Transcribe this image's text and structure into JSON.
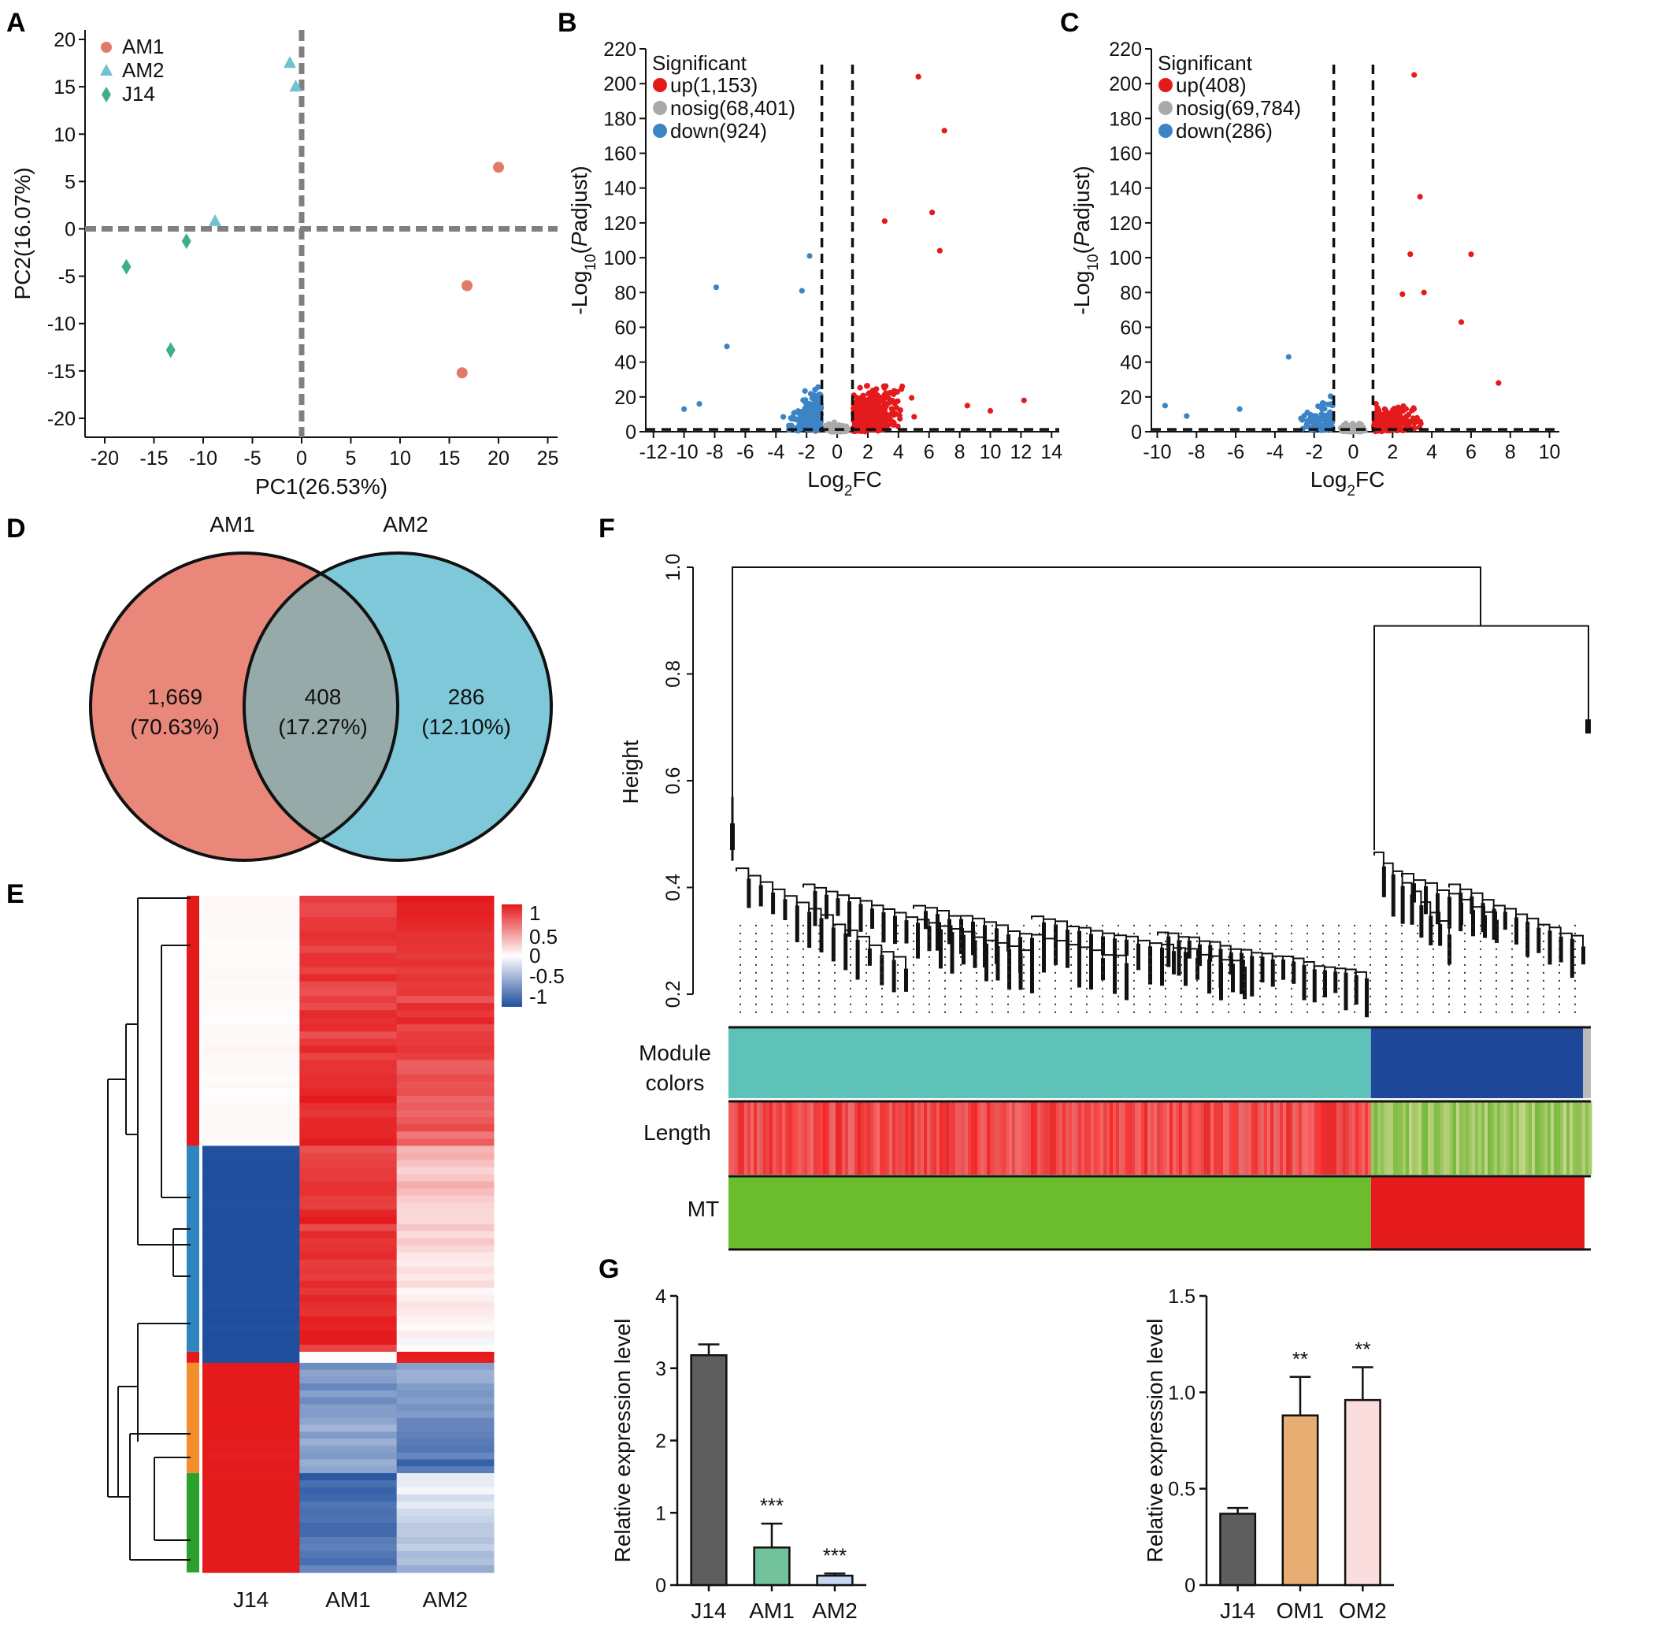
{
  "panels": [
    "A",
    "B",
    "C",
    "D",
    "E",
    "F",
    "G"
  ],
  "colors": {
    "am1": "#e07b69",
    "am2": "#6ec3d3",
    "j14": "#3fae8c",
    "up": "#e41a1c",
    "nosig": "#aaaaaa",
    "down": "#3c84c6",
    "venn_left": "#e9877a",
    "venn_right": "#7ec8d9",
    "venn_overlap": "#96aba9",
    "heat_high": "#e41a1c",
    "heat_low": "#1f4e9e",
    "turquoise": "#5ec2b9",
    "blue": "#1f4799",
    "green": "#6cbd2e",
    "red": "#e41a1c",
    "bar_j14": "#5e5e5e",
    "bar_am1": "#72c29b",
    "bar_am2": "#c6d8f4",
    "bar_om1": "#e8ad73",
    "bar_om2": "#fbdddd"
  },
  "chart_data": [
    {
      "panel": "A",
      "type": "scatter",
      "xlabel": "PC1(26.53%)",
      "ylabel": "PC2(16.07%)",
      "xlim": [
        -22,
        26
      ],
      "ylim": [
        -22,
        21
      ],
      "xticks": [
        -20,
        -15,
        -10,
        -5,
        0,
        5,
        10,
        15,
        20,
        25
      ],
      "yticks": [
        20,
        15,
        10,
        5,
        0,
        -5,
        -10,
        -15,
        -20
      ],
      "legend": [
        "AM1",
        "AM2",
        "J14"
      ],
      "series": [
        {
          "name": "AM1",
          "shape": "circle",
          "points": [
            [
              20,
              6.5
            ],
            [
              16.8,
              -6
            ],
            [
              16.3,
              -15.2
            ]
          ]
        },
        {
          "name": "AM2",
          "shape": "triangle",
          "points": [
            [
              -1.2,
              17.5
            ],
            [
              -0.6,
              15
            ],
            [
              -8.8,
              0.8
            ]
          ]
        },
        {
          "name": "J14",
          "shape": "diamond",
          "points": [
            [
              -11.7,
              -1.3
            ],
            [
              -17.8,
              -4
            ],
            [
              -13.3,
              -12.8
            ]
          ]
        }
      ]
    },
    {
      "panel": "B",
      "type": "scatter",
      "xlabel": "Log2FC",
      "ylabel": "-Log10(Padjust)",
      "xlim": [
        -12.5,
        14.5
      ],
      "ylim": [
        0,
        220
      ],
      "xticks": [
        -12,
        -10,
        -8,
        -6,
        -4,
        -2,
        0,
        2,
        4,
        6,
        8,
        10,
        12,
        14
      ],
      "yticks": [
        0,
        20,
        40,
        60,
        80,
        100,
        120,
        140,
        160,
        180,
        200,
        220
      ],
      "legend_title": "Significant",
      "legend": [
        "up(1,153)",
        "nosig(68,401)",
        "down(924)"
      ],
      "thresholds": {
        "fc": [
          -1,
          1
        ],
        "padj": 1.3
      },
      "highlight_points": {
        "up": [
          [
            5.3,
            204
          ],
          [
            7,
            173
          ],
          [
            6.2,
            126
          ],
          [
            3.1,
            121
          ],
          [
            6.7,
            104
          ],
          [
            12.2,
            18
          ],
          [
            8.5,
            15
          ],
          [
            10,
            12
          ]
        ],
        "down": [
          [
            -1.8,
            101
          ],
          [
            -7.9,
            83
          ],
          [
            -2.3,
            81
          ],
          [
            -7.2,
            49
          ],
          [
            -10,
            13
          ],
          [
            -9,
            16
          ]
        ]
      },
      "counts": {
        "up": 1153,
        "nosig": 68401,
        "down": 924
      }
    },
    {
      "panel": "C",
      "type": "scatter",
      "xlabel": "Log2FC",
      "ylabel": "-Log10(Padjust)",
      "xlim": [
        -10.3,
        10.5
      ],
      "ylim": [
        0,
        220
      ],
      "xticks": [
        -10,
        -8,
        -6,
        -4,
        -2,
        0,
        2,
        4,
        6,
        8,
        10
      ],
      "yticks": [
        0,
        20,
        40,
        60,
        80,
        100,
        120,
        140,
        160,
        180,
        200,
        220
      ],
      "legend_title": "Significant",
      "legend": [
        "up(408)",
        "nosig(69,784)",
        "down(286)"
      ],
      "thresholds": {
        "fc": [
          -1,
          1
        ],
        "padj": 1.3
      },
      "highlight_points": {
        "up": [
          [
            3.1,
            205
          ],
          [
            3.4,
            135
          ],
          [
            2.9,
            102
          ],
          [
            6,
            102
          ],
          [
            3.6,
            80
          ],
          [
            2.5,
            79
          ],
          [
            5.5,
            63
          ],
          [
            7.4,
            28
          ]
        ],
        "down": [
          [
            -3.3,
            43
          ],
          [
            -9.6,
            15
          ],
          [
            -8.5,
            9
          ],
          [
            -5.8,
            13
          ],
          [
            -1.6,
            13
          ]
        ]
      },
      "counts": {
        "up": 408,
        "nosig": 69784,
        "down": 286
      }
    },
    {
      "panel": "D",
      "type": "venn",
      "sets": [
        "AM1",
        "AM2"
      ],
      "regions": [
        {
          "count": "1,669",
          "pct": "(70.63%)"
        },
        {
          "count": "408",
          "pct": "(17.27%)"
        },
        {
          "count": "286",
          "pct": "(12.10%)"
        }
      ]
    },
    {
      "panel": "E",
      "type": "heatmap",
      "columns": [
        "J14",
        "AM1",
        "AM2"
      ],
      "legend_ticks": [
        "1",
        "0.5",
        "0",
        "-0.5",
        "-1"
      ],
      "clusters": [
        {
          "color": "#e41a1c",
          "rows": [
            0.02,
            0.88,
            0.82
          ]
        },
        {
          "color": "#2e86c1",
          "rows": [
            -1,
            0.9,
            0.15
          ]
        },
        {
          "color": "#e41a1c",
          "rows": [
            -1,
            0.05,
            0.95
          ]
        },
        {
          "color": "#f28e2b",
          "rows": [
            1,
            -0.55,
            -0.65
          ]
        },
        {
          "color": "#2ca02c",
          "rows": [
            1,
            -0.8,
            -0.3
          ]
        }
      ]
    },
    {
      "panel": "F",
      "type": "dendrogram",
      "ylabel": "Height",
      "ylim": [
        0.2,
        1.0
      ],
      "yticks": [
        "1.0",
        "0.8",
        "0.6",
        "0.4",
        "0.2"
      ],
      "tracks": [
        "Module colors",
        "Length",
        "MT"
      ],
      "module_split": 0.745,
      "root_height": 1.0,
      "left_branch_height": 0.57,
      "right_branch_height": 0.89,
      "right_sub_heights": [
        0.47,
        0.71
      ]
    },
    {
      "panel": "G1",
      "type": "bar",
      "ylabel": "Relative expression level",
      "categories": [
        "J14",
        "AM1",
        "AM2"
      ],
      "values": [
        3.18,
        0.52,
        0.13
      ],
      "errors": [
        0.15,
        0.33,
        0.03
      ],
      "significance": [
        "",
        "***",
        "***"
      ],
      "ylim": [
        0,
        4
      ],
      "yticks": [
        0,
        1,
        2,
        3,
        4
      ]
    },
    {
      "panel": "G2",
      "type": "bar",
      "ylabel": "Relative expression level",
      "categories": [
        "J14",
        "OM1",
        "OM2"
      ],
      "values": [
        0.37,
        0.88,
        0.96
      ],
      "errors": [
        0.03,
        0.2,
        0.17
      ],
      "significance": [
        "",
        "**",
        "**"
      ],
      "ylim": [
        0,
        1.5
      ],
      "yticks": [
        0,
        0.5,
        1.0,
        1.5
      ]
    }
  ]
}
